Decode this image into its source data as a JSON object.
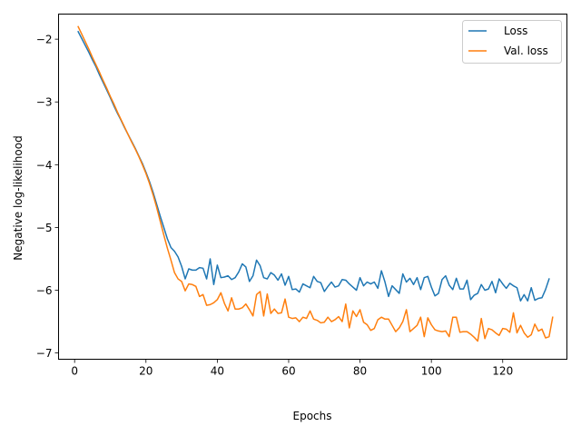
{
  "chart_data": {
    "type": "line",
    "title": "",
    "xlabel": "Epochs",
    "ylabel": "Negative log-likelihood",
    "xlim": [
      -4.5,
      138
    ],
    "ylim": [
      -7.1,
      -1.6
    ],
    "xticks": [
      0,
      20,
      40,
      60,
      80,
      100,
      120
    ],
    "xtick_labels": [
      "0",
      "20",
      "40",
      "60",
      "80",
      "100",
      "120"
    ],
    "yticks": [
      -2,
      -3,
      -4,
      -5,
      -6,
      -7
    ],
    "ytick_labels": [
      "−2",
      "−3",
      "−4",
      "−5",
      "−6",
      "−7"
    ],
    "grid": false,
    "legend_position": "top-right",
    "series": [
      {
        "name": "Loss",
        "color": "#1f77b4",
        "x_start": 1,
        "values": [
          -1.88,
          -1.99,
          -2.1,
          -2.21,
          -2.33,
          -2.44,
          -2.57,
          -2.69,
          -2.81,
          -2.93,
          -3.06,
          -3.18,
          -3.29,
          -3.41,
          -3.52,
          -3.63,
          -3.74,
          -3.86,
          -3.98,
          -4.12,
          -4.27,
          -4.44,
          -4.63,
          -4.82,
          -5.0,
          -5.18,
          -5.32,
          -5.38,
          -5.47,
          -5.62,
          -5.82,
          -5.66,
          -5.68,
          -5.68,
          -5.64,
          -5.65,
          -5.82,
          -5.5,
          -5.91,
          -5.6,
          -5.8,
          -5.79,
          -5.77,
          -5.83,
          -5.8,
          -5.71,
          -5.58,
          -5.63,
          -5.86,
          -5.77,
          -5.52,
          -5.61,
          -5.8,
          -5.82,
          -5.72,
          -5.76,
          -5.84,
          -5.74,
          -5.92,
          -5.78,
          -5.99,
          -5.98,
          -6.03,
          -5.9,
          -5.93,
          -5.96,
          -5.78,
          -5.86,
          -5.88,
          -6.02,
          -5.94,
          -5.87,
          -5.95,
          -5.93,
          -5.83,
          -5.84,
          -5.9,
          -5.95,
          -6.0,
          -5.8,
          -5.93,
          -5.87,
          -5.9,
          -5.87,
          -5.97,
          -5.69,
          -5.87,
          -6.1,
          -5.93,
          -5.99,
          -6.05,
          -5.74,
          -5.87,
          -5.81,
          -5.91,
          -5.8,
          -5.99,
          -5.8,
          -5.78,
          -5.95,
          -6.09,
          -6.05,
          -5.83,
          -5.77,
          -5.92,
          -5.99,
          -5.81,
          -5.98,
          -5.98,
          -5.84,
          -6.15,
          -6.08,
          -6.05,
          -5.91,
          -6.0,
          -5.98,
          -5.86,
          -6.04,
          -5.82,
          -5.9,
          -5.97,
          -5.89,
          -5.93,
          -5.96,
          -6.17,
          -6.07,
          -6.17,
          -5.96,
          -6.16,
          -6.13,
          -6.12,
          -5.99,
          -5.82
        ]
      },
      {
        "name": "Val. loss",
        "color": "#ff7f0e",
        "x_start": 1,
        "values": [
          -1.8,
          -1.92,
          -2.04,
          -2.16,
          -2.29,
          -2.41,
          -2.53,
          -2.66,
          -2.78,
          -2.91,
          -3.03,
          -3.16,
          -3.28,
          -3.4,
          -3.52,
          -3.64,
          -3.75,
          -3.87,
          -4.0,
          -4.14,
          -4.3,
          -4.48,
          -4.68,
          -4.9,
          -5.12,
          -5.33,
          -5.52,
          -5.72,
          -5.82,
          -5.86,
          -6.01,
          -5.9,
          -5.91,
          -5.94,
          -6.1,
          -6.07,
          -6.24,
          -6.23,
          -6.2,
          -6.15,
          -6.04,
          -6.21,
          -6.33,
          -6.12,
          -6.3,
          -6.3,
          -6.28,
          -6.22,
          -6.31,
          -6.41,
          -6.07,
          -6.02,
          -6.41,
          -6.06,
          -6.37,
          -6.3,
          -6.37,
          -6.36,
          -6.14,
          -6.43,
          -6.45,
          -6.44,
          -6.5,
          -6.43,
          -6.45,
          -6.33,
          -6.46,
          -6.48,
          -6.52,
          -6.51,
          -6.43,
          -6.5,
          -6.47,
          -6.42,
          -6.5,
          -6.22,
          -6.6,
          -6.33,
          -6.42,
          -6.31,
          -6.51,
          -6.55,
          -6.64,
          -6.61,
          -6.47,
          -6.43,
          -6.46,
          -6.46,
          -6.56,
          -6.66,
          -6.6,
          -6.5,
          -6.31,
          -6.66,
          -6.61,
          -6.56,
          -6.43,
          -6.74,
          -6.44,
          -6.55,
          -6.63,
          -6.65,
          -6.66,
          -6.65,
          -6.74,
          -6.43,
          -6.43,
          -6.67,
          -6.66,
          -6.66,
          -6.7,
          -6.75,
          -6.81,
          -6.45,
          -6.77,
          -6.61,
          -6.63,
          -6.68,
          -6.72,
          -6.61,
          -6.62,
          -6.67,
          -6.36,
          -6.68,
          -6.56,
          -6.68,
          -6.75,
          -6.71,
          -6.54,
          -6.65,
          -6.62,
          -6.76,
          -6.74,
          -6.43
        ]
      }
    ]
  }
}
